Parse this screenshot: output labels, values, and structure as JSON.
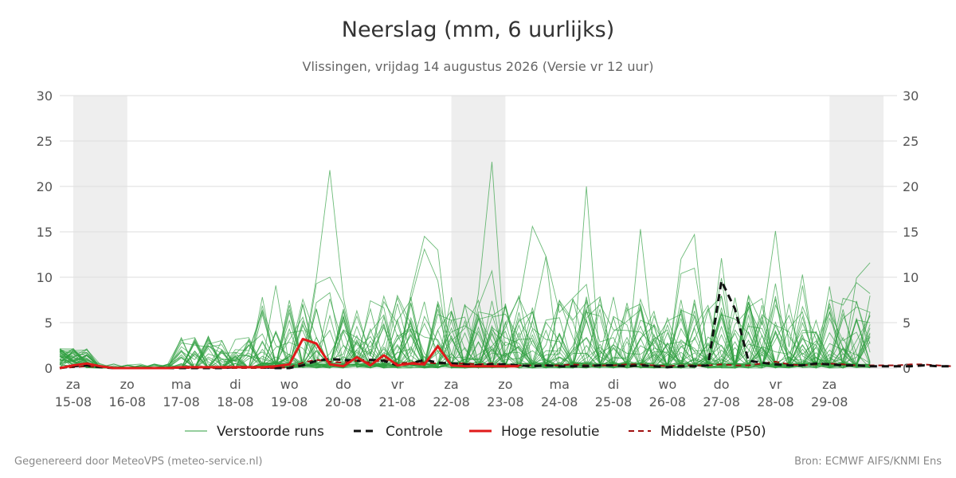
{
  "chart_data": {
    "type": "line",
    "title": "Neerslag (mm, 6 uurlijks)",
    "subtitle": "Vlissingen, vrijdag 14 augustus 2026 (Versie vr 12 uur)",
    "ylim": [
      0,
      30
    ],
    "yticks": [
      0,
      5,
      10,
      15,
      20,
      25,
      30
    ],
    "x_range_days": [
      14.75,
      30.25
    ],
    "day_ticks": [
      {
        "day": "za",
        "date": "15-08"
      },
      {
        "day": "zo",
        "date": "16-08"
      },
      {
        "day": "ma",
        "date": "17-08"
      },
      {
        "day": "di",
        "date": "18-08"
      },
      {
        "day": "wo",
        "date": "19-08"
      },
      {
        "day": "do",
        "date": "20-08"
      },
      {
        "day": "vr",
        "date": "21-08"
      },
      {
        "day": "za",
        "date": "22-08"
      },
      {
        "day": "zo",
        "date": "23-08"
      },
      {
        "day": "ma",
        "date": "24-08"
      },
      {
        "day": "di",
        "date": "25-08"
      },
      {
        "day": "wo",
        "date": "26-08"
      },
      {
        "day": "do",
        "date": "27-08"
      },
      {
        "day": "vr",
        "date": "28-08"
      },
      {
        "day": "za",
        "date": "29-08"
      }
    ],
    "grid": true,
    "weekend_shading": true,
    "legend_position": "bottom",
    "colors": {
      "ensemble": "#2e9e3e",
      "control": "#111111",
      "high_resolution": "#e01a1a",
      "median": "#a01010",
      "shade": "#eeeeee",
      "grid": "#dddddd"
    },
    "series": [
      {
        "name": "Verstoorde runs",
        "style": "thin",
        "values": []
      },
      {
        "name": "Controle",
        "style": "dashed-bold",
        "values": [
          0,
          0.2,
          0.3,
          0.1,
          0,
          0,
          0,
          0,
          0,
          0,
          0,
          0,
          0,
          0.1,
          0.1,
          0.1,
          0,
          0,
          0.3,
          0.8,
          1.0,
          0.9,
          0.8,
          0.9,
          0.8,
          0.3,
          0.5,
          0.9,
          0.6,
          0.5,
          0.4,
          0.3,
          0.4,
          0.4,
          0.3,
          0.2,
          0.3,
          0.2,
          0.2,
          0.2,
          0.3,
          0.3,
          0.2,
          0.3,
          0.2,
          0.1,
          0.2,
          0.2,
          0.3,
          9.6,
          6.5,
          0.8,
          0.6,
          0.4,
          0.3,
          0.3,
          0.5,
          0.4,
          0.3,
          0.3,
          0.2,
          0.2,
          0.2,
          0.2,
          0.3,
          0.2,
          0.2
        ]
      },
      {
        "name": "Hoge resolutie",
        "style": "solid-bold",
        "values": [
          0,
          0.3,
          0.5,
          0.2,
          0,
          0,
          0,
          0,
          0,
          0.1,
          0.1,
          0.1,
          0.1,
          0.1,
          0.1,
          0.1,
          0.2,
          0.4,
          3.2,
          2.7,
          0.4,
          0.2,
          1.2,
          0.3,
          1.4,
          0.3,
          0.5,
          0.4,
          2.4,
          0.3,
          0.2,
          0.2,
          0.2,
          0.2,
          0.2
        ]
      },
      {
        "name": "Middelste (P50)",
        "style": "dashed",
        "values": [
          0,
          0.1,
          0.2,
          0.1,
          0,
          0,
          0,
          0,
          0,
          0,
          0,
          0,
          0,
          0,
          0,
          0,
          0,
          0.1,
          0.6,
          0.9,
          0.7,
          0.6,
          0.8,
          0.6,
          0.9,
          0.5,
          0.6,
          0.6,
          0.5,
          0.5,
          0.5,
          0.4,
          0.5,
          0.3,
          0.3,
          0.3,
          0.3,
          0.3,
          0.4,
          0.3,
          0.3,
          0.3,
          0.4,
          0.4,
          0.3,
          0.2,
          0.3,
          0.3,
          0.3,
          0.4,
          0.3,
          0.3,
          0.5,
          0.7,
          0.4,
          0.3,
          0.4,
          0.5,
          0.4,
          0.3,
          0.3,
          0.3,
          0.3,
          0.4,
          0.4,
          0.3,
          0.2
        ]
      }
    ],
    "x_start_day": 14.75,
    "x_step_days": 0.25
  },
  "footer": {
    "left": "Gegenereerd door MeteoVPS (meteo-service.nl)",
    "right": "Bron: ECMWF AIFS/KNMI Ens"
  }
}
